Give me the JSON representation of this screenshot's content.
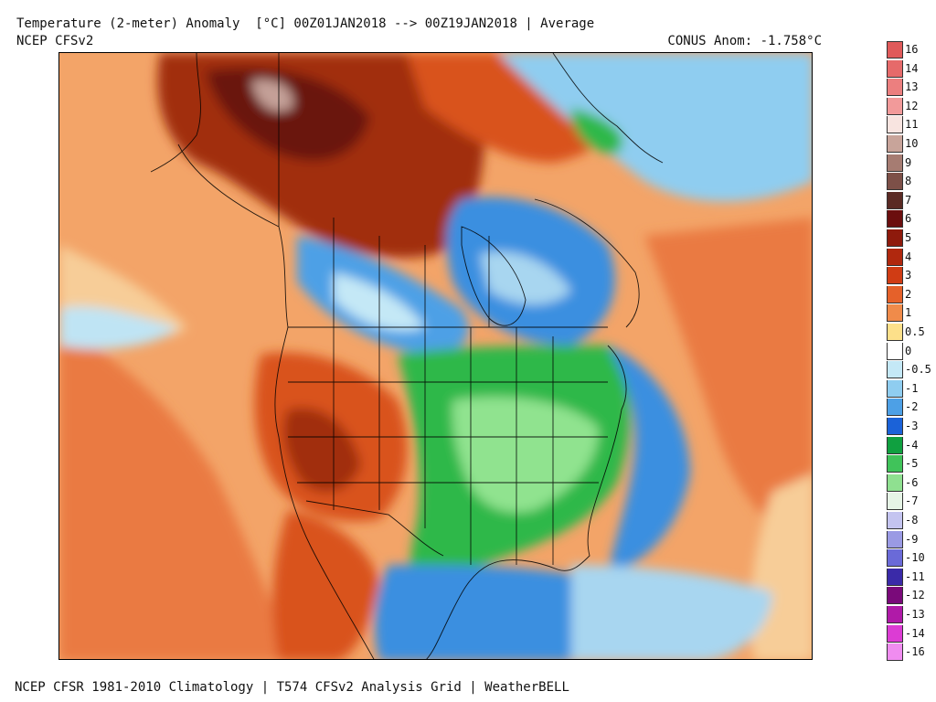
{
  "header": {
    "title": "Temperature (2-meter) Anomaly  [°C] 00Z01JAN2018 --> 00Z19JAN2018 | Average",
    "model": "NCEP CFSv2",
    "conus_anom": "CONUS Anom: -1.758°C"
  },
  "footer": {
    "text": "NCEP CFSR 1981-2010 Climatology | T574 CFSv2 Analysis Grid | WeatherBELL"
  },
  "colors": {
    "warm_extreme": "#6b1408",
    "warm_strong": "#a12d10",
    "warm_mid": "#d9531f",
    "warm_light": "#f08a4b",
    "warm_pale": "#f7b978",
    "neutral": "#ffffff",
    "cool_light": "#a8d6f0",
    "cool_mid": "#3a8fe0",
    "cold_green": "#2db84a",
    "cold_green_light": "#90e38f"
  },
  "legend": [
    {
      "label": "16",
      "color": "#e05a5a"
    },
    {
      "label": "14",
      "color": "#e66a6a"
    },
    {
      "label": "13",
      "color": "#ec7f7f"
    },
    {
      "label": "12",
      "color": "#f29a9a"
    },
    {
      "label": "11",
      "color": "#f8e4e0"
    },
    {
      "label": "10",
      "color": "#c8a49a"
    },
    {
      "label": "9",
      "color": "#a67c72"
    },
    {
      "label": "8",
      "color": "#7d5048"
    },
    {
      "label": "7",
      "color": "#5a2a24"
    },
    {
      "label": "6",
      "color": "#6b0e0e"
    },
    {
      "label": "5",
      "color": "#8e1a0c"
    },
    {
      "label": "4",
      "color": "#b0280e"
    },
    {
      "label": "3",
      "color": "#d03c14"
    },
    {
      "label": "2",
      "color": "#e5612a"
    },
    {
      "label": "1",
      "color": "#f08b4a"
    },
    {
      "label": "0.5",
      "color": "#fde08a"
    },
    {
      "label": "0",
      "color": "#ffffff"
    },
    {
      "label": "-0.5",
      "color": "#c4e8f6"
    },
    {
      "label": "-1",
      "color": "#8fcdf0"
    },
    {
      "label": "-2",
      "color": "#4da0e6"
    },
    {
      "label": "-3",
      "color": "#1b62d8"
    },
    {
      "label": "-4",
      "color": "#10a040"
    },
    {
      "label": "-5",
      "color": "#40c35a"
    },
    {
      "label": "-6",
      "color": "#8fe090"
    },
    {
      "label": "-7",
      "color": "#e6f4e6"
    },
    {
      "label": "-8",
      "color": "#c4c4f0"
    },
    {
      "label": "-9",
      "color": "#9a9ae4"
    },
    {
      "label": "-10",
      "color": "#6a6ad8"
    },
    {
      "label": "-11",
      "color": "#3a2aa8"
    },
    {
      "label": "-12",
      "color": "#7a0a7a"
    },
    {
      "label": "-13",
      "color": "#b01aa8"
    },
    {
      "label": "-14",
      "color": "#dc3cd4"
    },
    {
      "label": "-16",
      "color": "#f08cf0"
    }
  ]
}
